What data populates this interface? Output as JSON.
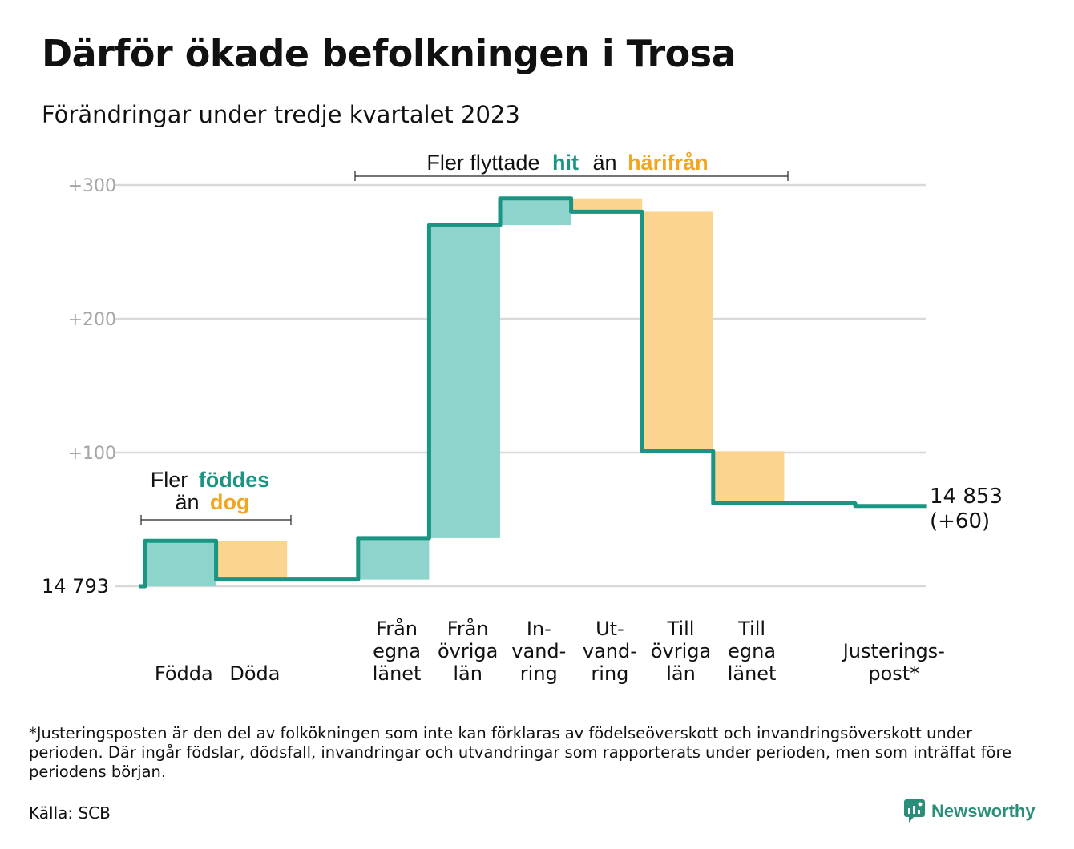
{
  "title": "Därför ökade befolkningen i Trosa",
  "subtitle": "Förändringar under tredje kvartalet 2023",
  "colors": {
    "increase_fill": "#8dd5cc",
    "decrease_fill": "#fbd58f",
    "line": "#1a9483",
    "teal_text": "#1a9483",
    "orange_text": "#f2a51e",
    "grid": "#d9d9d9",
    "tick": "#a6a6a6"
  },
  "annotations": {
    "births_deaths": {
      "prefix": "Fler",
      "highlight1": "föddes",
      "middle": "än",
      "highlight2": "dog"
    },
    "migration": {
      "prefix": "Fler flyttade",
      "highlight1": "hit",
      "middle": "än",
      "highlight2": "härifrån"
    }
  },
  "footnote": "*Justeringsposten är den del av folkökningen som inte kan förklaras av födelseöverskott och invandringsöverskott under perioden. Där ingår födslar, dödsfall, invandringar och utvandringar som rapporterats under perioden, men som inträffat före periodens början.",
  "source": "Källa: SCB",
  "logo": {
    "text": "Newsworthy",
    "icon": "newsworthy-logo-icon"
  },
  "chart_data": {
    "type": "waterfall",
    "start_label": "14  793",
    "start_value": 14793,
    "end_label_line1": "14 853",
    "end_label_line2": "(+60)",
    "y_ticks": [
      {
        "value": 100,
        "label": "+100"
      },
      {
        "value": 200,
        "label": "+200"
      },
      {
        "value": 300,
        "label": "+300"
      }
    ],
    "ylim": [
      0,
      310
    ],
    "steps": [
      {
        "label": [
          "Födda"
        ],
        "delta": 34,
        "kind": "increase"
      },
      {
        "label": [
          "Döda"
        ],
        "delta": -29,
        "kind": "decrease"
      },
      {
        "label": [],
        "delta": 0,
        "kind": "none"
      },
      {
        "label": [
          "Från",
          "egna",
          "länet"
        ],
        "delta": 31,
        "kind": "increase"
      },
      {
        "label": [
          "Från",
          "övriga",
          "län"
        ],
        "delta": 234,
        "kind": "increase"
      },
      {
        "label": [
          "In-",
          "vand-",
          "ring"
        ],
        "delta": 20,
        "kind": "increase"
      },
      {
        "label": [
          "Ut-",
          "vand-",
          "ring"
        ],
        "delta": -10,
        "kind": "decrease"
      },
      {
        "label": [
          "Till",
          "övriga",
          "län"
        ],
        "delta": -179,
        "kind": "decrease"
      },
      {
        "label": [
          "Till",
          "egna",
          "länet"
        ],
        "delta": -39,
        "kind": "decrease"
      },
      {
        "label": [],
        "delta": 0,
        "kind": "none"
      },
      {
        "label": [
          "Justerings-",
          "post*"
        ],
        "delta": -2,
        "kind": "adjustment"
      }
    ]
  }
}
